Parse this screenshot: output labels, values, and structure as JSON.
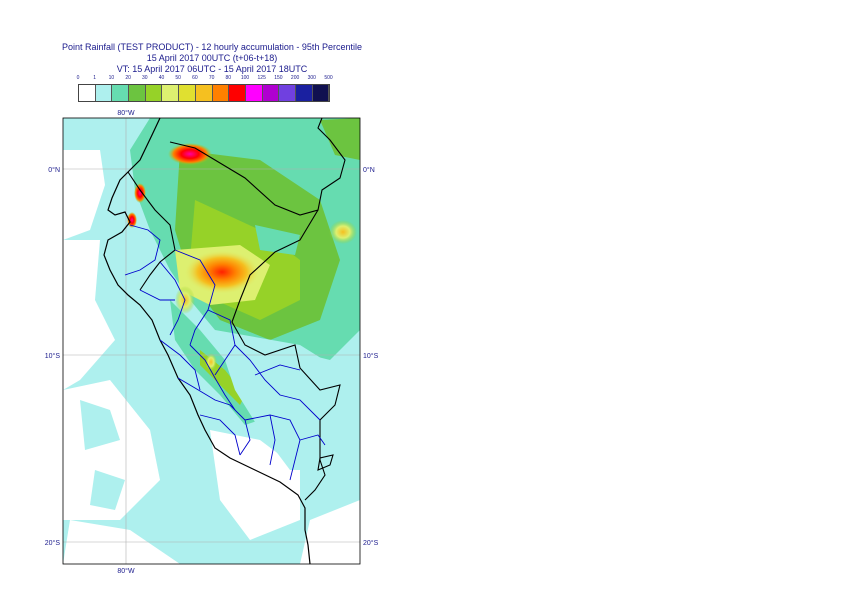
{
  "title": {
    "line1": "Point Rainfall (TEST PRODUCT) - 12 hourly accumulation - 95th Percentile",
    "line2": "15 April 2017 00UTC (t+06-t+18)",
    "line3": "VT: 15 April 2017 06UTC - 15 April 2017 18UTC"
  },
  "legend": {
    "labels": [
      "0",
      "1",
      "10",
      "20",
      "30",
      "40",
      "50",
      "60",
      "70",
      "80",
      "100",
      "125",
      "150",
      "200",
      "300",
      "500"
    ],
    "colors": [
      "#ffffff",
      "#aef0ee",
      "#66dcb0",
      "#6cc440",
      "#96d228",
      "#ddf070",
      "#e0e030",
      "#f5c020",
      "#ff8000",
      "#ff0000",
      "#ff00ff",
      "#b000d0",
      "#7040e0",
      "#1a20a0",
      "#101050"
    ]
  },
  "axes": {
    "lon_top": "80°W",
    "lon_bottom": "80°W",
    "lat_0_left": "0°N",
    "lat_0_right": "0°N",
    "lat_10_left": "10°S",
    "lat_10_right": "10°S",
    "lat_20_left": "20°S",
    "lat_20_right": "20°S"
  },
  "colors": {
    "ocean": "#aef0ee",
    "coast": "#000000",
    "borders": "#0000cc",
    "grid": "#b0b0b0"
  }
}
